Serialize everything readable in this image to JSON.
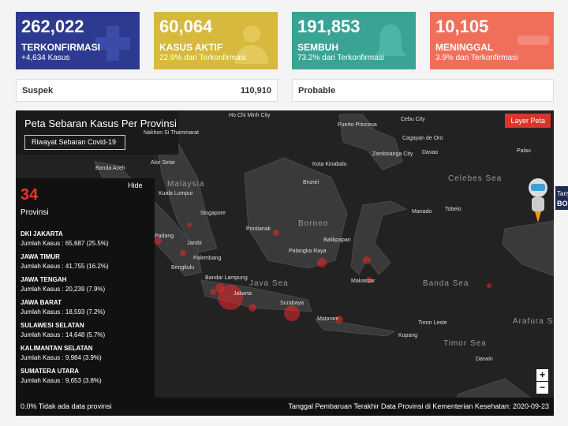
{
  "cards": [
    {
      "value": "262,022",
      "label": "TERKONFIRMASI",
      "sub": "+4,634 Kasus"
    },
    {
      "value": "60,064",
      "label": "KASUS AKTIF",
      "sub": "22.9% dari Terkonfirmasi"
    },
    {
      "value": "191,853",
      "label": "SEMBUH",
      "sub": "73.2% dari Terkonfirmasi"
    },
    {
      "value": "10,105",
      "label": "MENINGGAL",
      "sub": "3.9% dari Terkonfirmasi"
    }
  ],
  "suspek": {
    "label": "Suspek",
    "value": "110,910"
  },
  "probable": {
    "label": "Probable"
  },
  "map": {
    "title": "Peta Sebaran Kasus Per Provinsi",
    "history_button": "Riwayat Sebaran Covid-19",
    "layer_button": "Layer Peta",
    "hide": "Hide",
    "province_count": "34",
    "province_label": "Provinsi",
    "provinces": [
      {
        "name": "DKI JAKARTA",
        "cases": "Jumlah Kasus : 65,687 (25.5%)"
      },
      {
        "name": "JAWA TIMUR",
        "cases": "Jumlah Kasus : 41,755 (16.2%)"
      },
      {
        "name": "JAWA TENGAH",
        "cases": "Jumlah Kasus : 20,239 (7.9%)"
      },
      {
        "name": "JAWA BARAT",
        "cases": "Jumlah Kasus : 18,593 (7.2%)"
      },
      {
        "name": "SULAWESI SELATAN",
        "cases": "Jumlah Kasus : 14,648 (5.7%)"
      },
      {
        "name": "KALIMANTAN SELATAN",
        "cases": "Jumlah Kasus : 9,984 (3.9%)"
      },
      {
        "name": "SUMATERA UTARA",
        "cases": "Jumlah Kasus : 9,653 (3.8%)"
      }
    ],
    "labels": [
      "Ho Chi Minh City",
      "Puerto Princesa",
      "Cebu City",
      "Cagayan de Oro",
      "Palau",
      "Davao",
      "Zamboanga City",
      "Nakhon Si Thammarat",
      "Banda Aceh",
      "Alor Setar",
      "Kota Kinabalu",
      "Malaysia",
      "Kuala Lumpur",
      "Brunei",
      "Singapore",
      "Manado",
      "Tobelo",
      "Pontianak",
      "Borneo",
      "Padang",
      "Jambi",
      "Balikpapan",
      "Palembang",
      "Palangka Raya",
      "Bengkulu",
      "Makassar",
      "Bandar Lampung",
      "Java Sea",
      "Jakarta",
      "Banda Sea",
      "Surabaya",
      "Mataram",
      "Timor Leste",
      "Kupang",
      "Arafura Sea",
      "Darwin",
      "Celebes Sea",
      "Timor Sea"
    ],
    "footer_left": "0.0% Tidak ada data provinsi",
    "footer_right": "Tanggal Pembaruan Terakhir Data Provinsi di Kementerian Kesehatan: 2020-09-23",
    "zoom_in": "+",
    "zoom_out": "−"
  },
  "widget": {
    "line1": "Tany",
    "line2": "BO"
  }
}
